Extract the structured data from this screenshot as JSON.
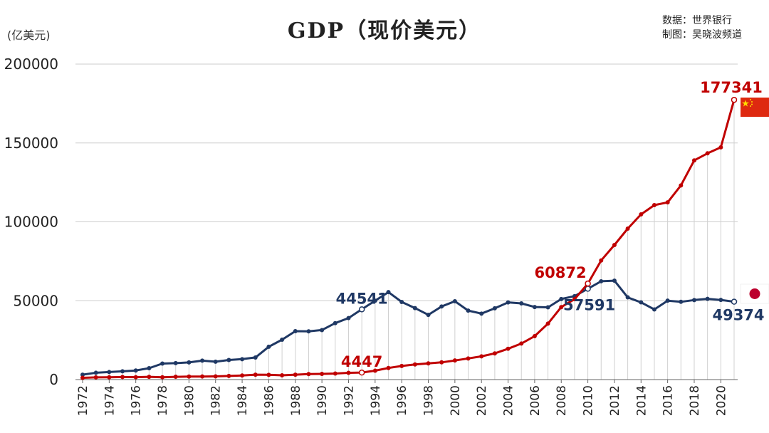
{
  "header": {
    "title": "GDP（现价美元）",
    "unit": "(亿美元)",
    "source_line1": "数据：世界银行",
    "source_line2": "制图：吴晓波频道"
  },
  "colors": {
    "china": "#c00000",
    "japan": "#1f3864",
    "grid": "#cccccc",
    "drop": "#d0d0d0"
  },
  "chart_data": {
    "type": "line",
    "title": "GDP（现价美元）",
    "ylabel": "(亿美元)",
    "xlabel": "",
    "ylim": [
      0,
      200000
    ],
    "yticks": [
      0,
      50000,
      100000,
      150000,
      200000
    ],
    "xticks": [
      1972,
      1974,
      1976,
      1978,
      1980,
      1982,
      1984,
      1986,
      1988,
      1990,
      1992,
      1994,
      1996,
      1998,
      2000,
      2002,
      2004,
      2006,
      2008,
      2010,
      2012,
      2014,
      2016,
      2018,
      2020
    ],
    "x": [
      1972,
      1973,
      1974,
      1975,
      1976,
      1977,
      1978,
      1979,
      1980,
      1981,
      1982,
      1983,
      1984,
      1985,
      1986,
      1987,
      1988,
      1989,
      1990,
      1991,
      1992,
      1993,
      1994,
      1995,
      1996,
      1997,
      1998,
      1999,
      2000,
      2001,
      2002,
      2003,
      2004,
      2005,
      2006,
      2007,
      2008,
      2009,
      2010,
      2011,
      2012,
      2013,
      2014,
      2015,
      2016,
      2017,
      2018,
      2019,
      2020,
      2021
    ],
    "series": [
      {
        "name": "China",
        "flag": "china",
        "values": [
          1137,
          1385,
          1442,
          1634,
          1539,
          1750,
          1495,
          1783,
          1911,
          1958,
          2050,
          2303,
          2599,
          3094,
          3007,
          2729,
          3123,
          3477,
          3609,
          3834,
          4269,
          4447,
          5643,
          7345,
          8637,
          9616,
          10290,
          10940,
          12113,
          13393,
          14705,
          16602,
          19553,
          22860,
          27521,
          35500,
          45944,
          50970,
          60872,
          75515,
          85322,
          95704,
          104757,
          110616,
          112333,
          123104,
          138948,
          143429,
          147227,
          177341
        ],
        "labels": [
          {
            "year": 1993,
            "text": "4447"
          },
          {
            "year": 2010,
            "text": "60872"
          },
          {
            "year": 2021,
            "text": "177341"
          }
        ]
      },
      {
        "name": "Japan",
        "flag": "japan",
        "values": [
          3127,
          4318,
          4769,
          5234,
          5765,
          7210,
          10145,
          10420,
          10870,
          12010,
          11340,
          12430,
          12940,
          14020,
          20800,
          25300,
          30700,
          30600,
          31400,
          35800,
          39000,
          44541,
          49980,
          55450,
          49230,
          45320,
          41040,
          46360,
          49680,
          43740,
          41830,
          45190,
          48930,
          48310,
          46010,
          45800,
          51060,
          52890,
          57591,
          62330,
          62720,
          52120,
          48960,
          44450,
          50040,
          49310,
          50410,
          51180,
          50480,
          49374
        ],
        "labels": [
          {
            "year": 1993,
            "text": "44541"
          },
          {
            "year": 2010,
            "text": "57591"
          },
          {
            "year": 2021,
            "text": "49374"
          }
        ]
      }
    ]
  }
}
